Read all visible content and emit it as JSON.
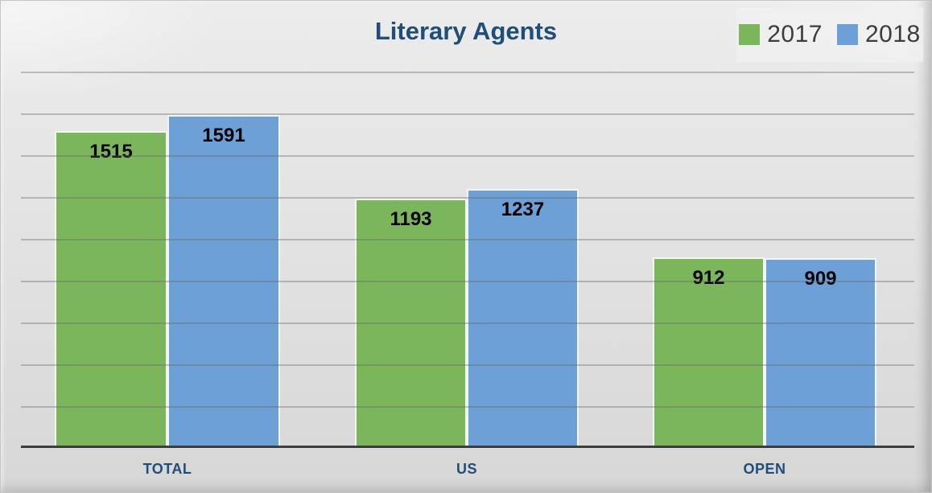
{
  "chart_data": {
    "type": "bar",
    "title": "Literary Agents",
    "categories": [
      "TOTAL",
      "US",
      "OPEN"
    ],
    "series": [
      {
        "name": "2017",
        "color": "#7cb65c",
        "values": [
          1515,
          1193,
          912
        ]
      },
      {
        "name": "2018",
        "color": "#6ca0d6",
        "values": [
          1591,
          1237,
          909
        ]
      }
    ],
    "xlabel": "",
    "ylabel": "",
    "ylim": [
      0,
      1800
    ],
    "gridline_interval": 200,
    "grid": true,
    "legend_position": "top-right",
    "value_labels": "inside-end"
  },
  "colors": {
    "title_text": "#1f4e79",
    "category_label_text": "#1f4e79",
    "value_label_text": "#000000",
    "legend_text": "#3c3c3c",
    "axis_line": "#3d3d3d",
    "gridline": "#6a6a6a",
    "background_top": "#ececec",
    "background_bottom": "#d7d7d7"
  }
}
